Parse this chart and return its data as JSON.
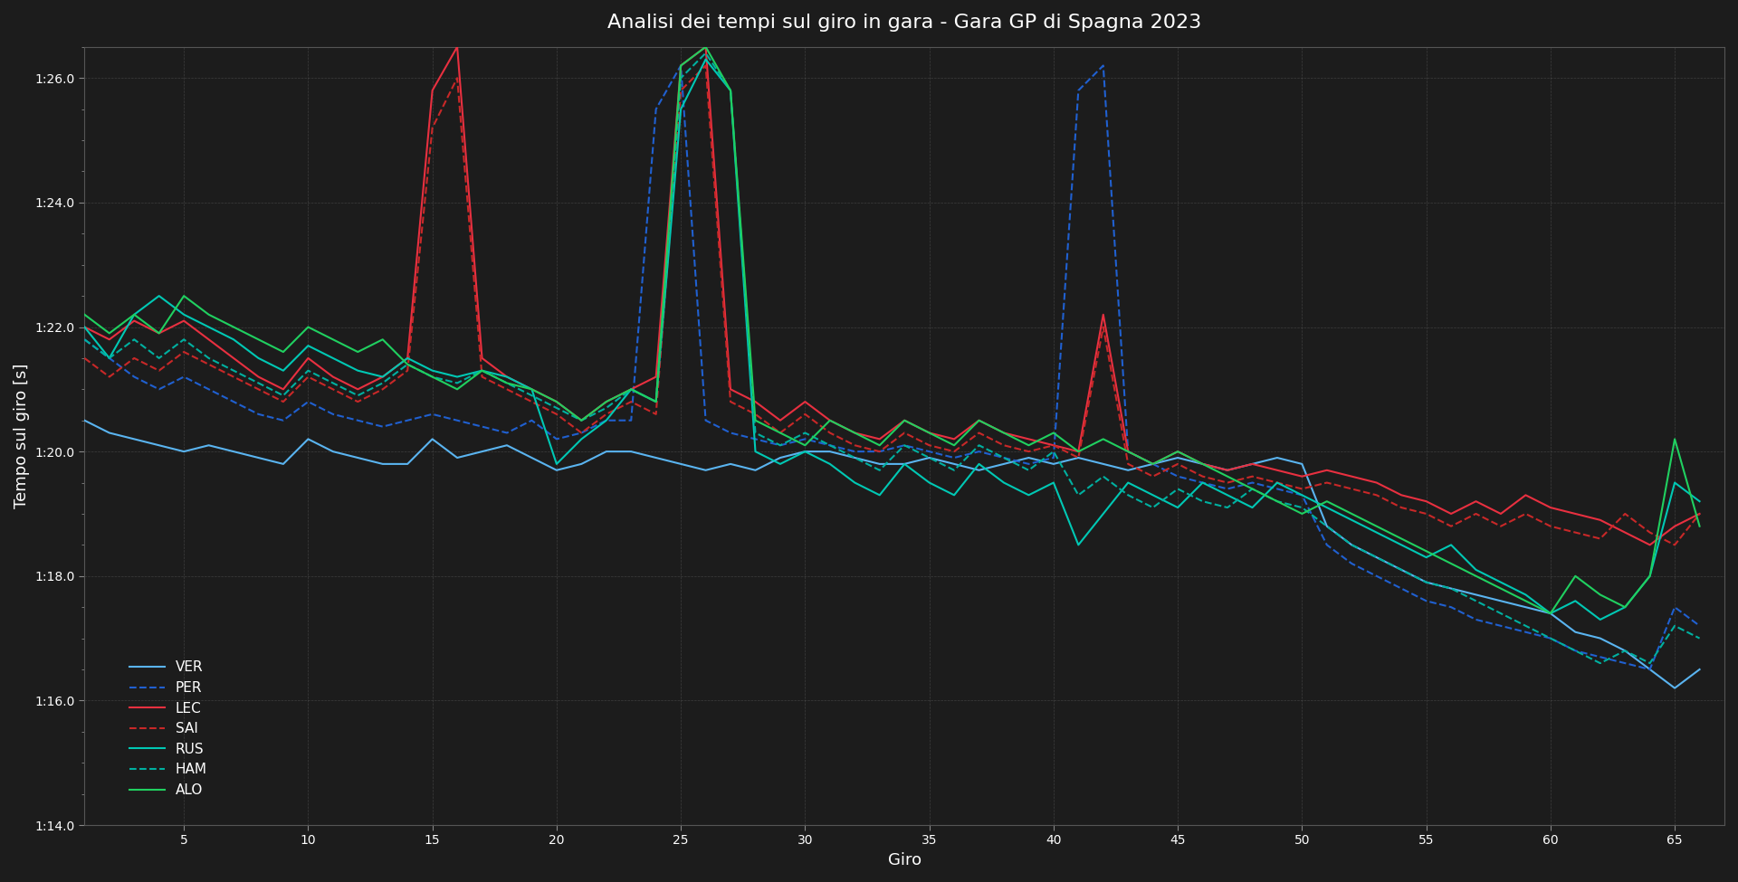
{
  "title": "Analisi dei tempi sul giro in gara - Gara GP di Spagna 2023",
  "xlabel": "Giro",
  "ylabel": "Tempo sul giro [s]",
  "background_color": "#1c1c1c",
  "grid_color": "#4a4a4a",
  "text_color": "#ffffff",
  "ylim_low": 74.0,
  "ylim_high": 86.5,
  "xlim_low": 1,
  "xlim_high": 67,
  "drivers": [
    "VER",
    "PER",
    "LEC",
    "SAI",
    "RUS",
    "HAM",
    "ALO"
  ],
  "colors": {
    "VER": "#5ab4f0",
    "PER": "#2060d0",
    "LEC": "#e83040",
    "SAI": "#c82828",
    "RUS": "#00c8b4",
    "HAM": "#00b0a0",
    "ALO": "#20d060"
  },
  "linestyles": {
    "VER": "solid",
    "PER": "dashed",
    "LEC": "solid",
    "SAI": "dashed",
    "RUS": "solid",
    "HAM": "dashed",
    "ALO": "solid"
  },
  "lap_times": {
    "VER": {
      "laps": [
        1,
        2,
        3,
        4,
        5,
        6,
        7,
        8,
        9,
        10,
        11,
        12,
        13,
        14,
        15,
        16,
        17,
        18,
        19,
        20,
        21,
        22,
        23,
        24,
        25,
        26,
        27,
        28,
        29,
        30,
        31,
        32,
        33,
        34,
        35,
        36,
        37,
        38,
        39,
        40,
        41,
        42,
        43,
        44,
        45,
        46,
        47,
        48,
        49,
        50,
        51,
        52,
        53,
        54,
        55,
        56,
        57,
        58,
        59,
        60,
        61,
        62,
        63,
        64,
        65,
        66
      ],
      "times": [
        80.5,
        80.3,
        80.2,
        80.1,
        80.0,
        80.1,
        80.0,
        79.9,
        79.8,
        80.2,
        80.0,
        79.9,
        79.8,
        79.8,
        80.2,
        79.9,
        80.0,
        80.1,
        79.9,
        79.7,
        79.8,
        80.0,
        80.0,
        79.9,
        79.8,
        79.7,
        79.8,
        79.7,
        79.9,
        80.0,
        80.0,
        79.9,
        79.8,
        79.8,
        79.9,
        79.8,
        79.7,
        79.8,
        79.9,
        79.8,
        79.9,
        79.8,
        79.7,
        79.8,
        79.9,
        79.8,
        79.7,
        79.8,
        79.9,
        79.8,
        78.8,
        78.5,
        78.3,
        78.1,
        77.9,
        77.8,
        77.7,
        77.6,
        77.5,
        77.4,
        77.1,
        77.0,
        76.8,
        76.5,
        76.2,
        76.5
      ]
    },
    "PER": {
      "laps": [
        1,
        2,
        3,
        4,
        5,
        6,
        7,
        8,
        9,
        10,
        11,
        12,
        13,
        14,
        15,
        16,
        17,
        18,
        19,
        20,
        21,
        22,
        23,
        24,
        25,
        26,
        27,
        28,
        29,
        30,
        31,
        32,
        33,
        34,
        35,
        36,
        37,
        38,
        39,
        40,
        41,
        42,
        43,
        44,
        45,
        46,
        47,
        48,
        49,
        50,
        51,
        52,
        53,
        54,
        55,
        56,
        57,
        58,
        59,
        60,
        61,
        62,
        63,
        64,
        65,
        66
      ],
      "times": [
        81.8,
        81.5,
        81.2,
        81.0,
        81.2,
        81.0,
        80.8,
        80.6,
        80.5,
        80.8,
        80.6,
        80.5,
        80.4,
        80.5,
        80.6,
        80.5,
        80.4,
        80.3,
        80.5,
        80.2,
        80.3,
        80.5,
        80.5,
        85.5,
        86.2,
        80.5,
        80.3,
        80.2,
        80.1,
        80.2,
        80.1,
        80.0,
        80.0,
        80.1,
        80.0,
        79.9,
        80.0,
        79.9,
        79.8,
        79.9,
        85.8,
        86.2,
        80.0,
        79.8,
        79.6,
        79.5,
        79.4,
        79.5,
        79.4,
        79.3,
        78.5,
        78.2,
        78.0,
        77.8,
        77.6,
        77.5,
        77.3,
        77.2,
        77.1,
        77.0,
        76.8,
        76.7,
        76.6,
        76.5,
        77.5,
        77.2
      ]
    },
    "LEC": {
      "laps": [
        1,
        2,
        3,
        4,
        5,
        6,
        7,
        8,
        9,
        10,
        11,
        12,
        13,
        14,
        15,
        16,
        17,
        18,
        19,
        20,
        21,
        22,
        23,
        24,
        25,
        26,
        27,
        28,
        29,
        30,
        31,
        32,
        33,
        34,
        35,
        36,
        37,
        38,
        39,
        40,
        41,
        42,
        43,
        44,
        45,
        46,
        47,
        48,
        49,
        50,
        51,
        52,
        53,
        54,
        55,
        56,
        57,
        58,
        59,
        60,
        61,
        62,
        63,
        64,
        65,
        66
      ],
      "times": [
        82.0,
        81.8,
        82.1,
        81.9,
        82.1,
        81.8,
        81.5,
        81.2,
        81.0,
        81.5,
        81.2,
        81.0,
        81.2,
        81.5,
        85.8,
        86.5,
        81.5,
        81.2,
        81.0,
        80.8,
        80.5,
        80.8,
        81.0,
        81.2,
        86.2,
        86.5,
        81.0,
        80.8,
        80.5,
        80.8,
        80.5,
        80.3,
        80.2,
        80.5,
        80.3,
        80.2,
        80.5,
        80.3,
        80.2,
        80.1,
        80.0,
        82.2,
        80.0,
        79.8,
        80.0,
        79.8,
        79.7,
        79.8,
        79.7,
        79.6,
        79.7,
        79.6,
        79.5,
        79.3,
        79.2,
        79.0,
        79.2,
        79.0,
        79.3,
        79.1,
        79.0,
        78.9,
        78.7,
        78.5,
        78.8,
        79.0
      ]
    },
    "SAI": {
      "laps": [
        1,
        2,
        3,
        4,
        5,
        6,
        7,
        8,
        9,
        10,
        11,
        12,
        13,
        14,
        15,
        16,
        17,
        18,
        19,
        20,
        21,
        22,
        23,
        24,
        25,
        26,
        27,
        28,
        29,
        30,
        31,
        32,
        33,
        34,
        35,
        36,
        37,
        38,
        39,
        40,
        41,
        42,
        43,
        44,
        45,
        46,
        47,
        48,
        49,
        50,
        51,
        52,
        53,
        54,
        55,
        56,
        57,
        58,
        59,
        60,
        61,
        62,
        63,
        64,
        65,
        66
      ],
      "times": [
        81.5,
        81.2,
        81.5,
        81.3,
        81.6,
        81.4,
        81.2,
        81.0,
        80.8,
        81.2,
        81.0,
        80.8,
        81.0,
        81.3,
        85.2,
        86.0,
        81.2,
        81.0,
        80.8,
        80.6,
        80.3,
        80.6,
        80.8,
        80.6,
        85.8,
        86.2,
        80.8,
        80.6,
        80.3,
        80.6,
        80.3,
        80.1,
        80.0,
        80.3,
        80.1,
        80.0,
        80.3,
        80.1,
        80.0,
        80.1,
        79.9,
        82.0,
        79.8,
        79.6,
        79.8,
        79.6,
        79.5,
        79.6,
        79.5,
        79.4,
        79.5,
        79.4,
        79.3,
        79.1,
        79.0,
        78.8,
        79.0,
        78.8,
        79.0,
        78.8,
        78.7,
        78.6,
        79.0,
        78.7,
        78.5,
        79.0
      ]
    },
    "RUS": {
      "laps": [
        1,
        2,
        3,
        4,
        5,
        6,
        7,
        8,
        9,
        10,
        11,
        12,
        13,
        14,
        15,
        16,
        17,
        18,
        19,
        20,
        21,
        22,
        23,
        24,
        25,
        26,
        27,
        28,
        29,
        30,
        31,
        32,
        33,
        34,
        35,
        36,
        37,
        38,
        39,
        40,
        41,
        42,
        43,
        44,
        45,
        46,
        47,
        48,
        49,
        50,
        51,
        52,
        53,
        54,
        55,
        56,
        57,
        58,
        59,
        60,
        61,
        62,
        63,
        64,
        65,
        66
      ],
      "times": [
        82.0,
        81.5,
        82.2,
        82.5,
        82.2,
        82.0,
        81.8,
        81.5,
        81.3,
        81.7,
        81.5,
        81.3,
        81.2,
        81.5,
        81.3,
        81.2,
        81.3,
        81.2,
        81.0,
        79.8,
        80.2,
        80.5,
        81.0,
        80.8,
        85.5,
        86.3,
        85.8,
        80.0,
        79.8,
        80.0,
        79.8,
        79.5,
        79.3,
        79.8,
        79.5,
        79.3,
        79.8,
        79.5,
        79.3,
        79.5,
        78.5,
        79.0,
        79.5,
        79.3,
        79.1,
        79.5,
        79.3,
        79.1,
        79.5,
        79.3,
        79.1,
        78.9,
        78.7,
        78.5,
        78.3,
        78.5,
        78.1,
        77.9,
        77.7,
        77.4,
        77.6,
        77.3,
        77.5,
        78.0,
        79.5,
        79.2
      ]
    },
    "HAM": {
      "laps": [
        1,
        2,
        3,
        4,
        5,
        6,
        7,
        8,
        9,
        10,
        11,
        12,
        13,
        14,
        15,
        16,
        17,
        18,
        19,
        20,
        21,
        22,
        23,
        24,
        25,
        26,
        27,
        28,
        29,
        30,
        31,
        32,
        33,
        34,
        35,
        36,
        37,
        38,
        39,
        40,
        41,
        42,
        43,
        44,
        45,
        46,
        47,
        48,
        49,
        50,
        51,
        52,
        53,
        54,
        55,
        56,
        57,
        58,
        59,
        60,
        61,
        62,
        63,
        64,
        65,
        66
      ],
      "times": [
        81.8,
        81.5,
        81.8,
        81.5,
        81.8,
        81.5,
        81.3,
        81.1,
        80.9,
        81.3,
        81.1,
        80.9,
        81.1,
        81.4,
        81.2,
        81.1,
        81.3,
        81.1,
        80.9,
        80.7,
        80.5,
        80.7,
        81.0,
        80.8,
        86.0,
        86.4,
        85.8,
        80.3,
        80.1,
        80.3,
        80.1,
        79.9,
        79.7,
        80.1,
        79.9,
        79.7,
        80.1,
        79.9,
        79.7,
        80.0,
        79.3,
        79.6,
        79.3,
        79.1,
        79.4,
        79.2,
        79.1,
        79.4,
        79.2,
        79.1,
        78.8,
        78.5,
        78.3,
        78.1,
        77.9,
        77.8,
        77.6,
        77.4,
        77.2,
        77.0,
        76.8,
        76.6,
        76.8,
        76.6,
        77.2,
        77.0
      ]
    },
    "ALO": {
      "laps": [
        1,
        2,
        3,
        4,
        5,
        6,
        7,
        8,
        9,
        10,
        11,
        12,
        13,
        14,
        15,
        16,
        17,
        18,
        19,
        20,
        21,
        22,
        23,
        24,
        25,
        26,
        27,
        28,
        29,
        30,
        31,
        32,
        33,
        34,
        35,
        36,
        37,
        38,
        39,
        40,
        41,
        42,
        43,
        44,
        45,
        46,
        47,
        48,
        49,
        50,
        51,
        52,
        53,
        54,
        55,
        56,
        57,
        58,
        59,
        60,
        61,
        62,
        63,
        64,
        65,
        66
      ],
      "times": [
        82.2,
        81.9,
        82.2,
        81.9,
        82.5,
        82.2,
        82.0,
        81.8,
        81.6,
        82.0,
        81.8,
        81.6,
        81.8,
        81.4,
        81.2,
        81.0,
        81.3,
        81.1,
        81.0,
        80.8,
        80.5,
        80.8,
        81.0,
        80.8,
        86.2,
        86.5,
        85.8,
        80.5,
        80.3,
        80.1,
        80.5,
        80.3,
        80.1,
        80.5,
        80.3,
        80.1,
        80.5,
        80.3,
        80.1,
        80.3,
        80.0,
        80.2,
        80.0,
        79.8,
        80.0,
        79.8,
        79.6,
        79.4,
        79.2,
        79.0,
        79.2,
        79.0,
        78.8,
        78.6,
        78.4,
        78.2,
        78.0,
        77.8,
        77.6,
        77.4,
        78.0,
        77.7,
        77.5,
        78.0,
        80.2,
        78.8
      ]
    }
  }
}
